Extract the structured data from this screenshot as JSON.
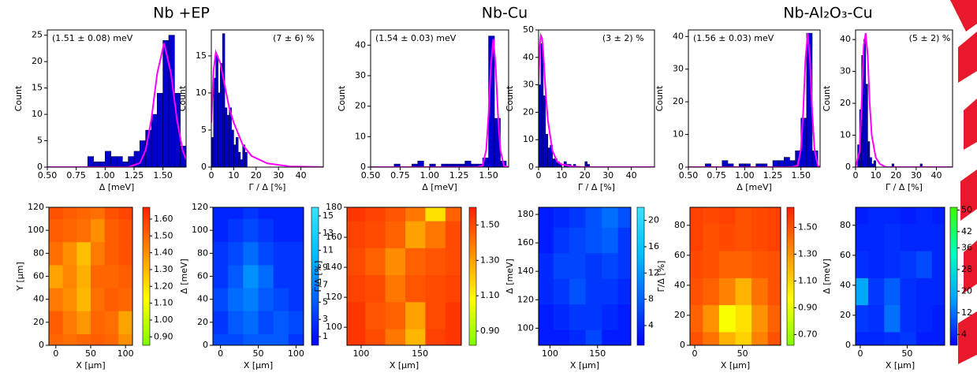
{
  "headings": [
    "Nb +EP",
    "Nb-Cu",
    "Nb-Al₂O₃-Cu"
  ],
  "chart_data": [
    {
      "type": "histogram",
      "annotation": "(1.51 ± 0.08) meV",
      "xlabel": "Δ [meV]",
      "ylabel": "Count",
      "color": "#0000cc",
      "bins": [
        0.85,
        0.9,
        0.95,
        1.0,
        1.05,
        1.1,
        1.15,
        1.2,
        1.25,
        1.3,
        1.35,
        1.4,
        1.45,
        1.5,
        1.55,
        1.6,
        1.65,
        1.7
      ],
      "values": [
        2,
        1,
        1,
        3,
        2,
        2,
        1,
        2,
        3,
        5,
        7,
        10,
        14,
        24,
        25,
        14,
        4
      ],
      "fit": {
        "color": "#ff00ff",
        "x": [
          0.5,
          1.2,
          1.3,
          1.35,
          1.4,
          1.45,
          1.51,
          1.57,
          1.62,
          1.67,
          1.7
        ],
        "y": [
          0,
          0,
          0.75,
          3.2,
          9.1,
          17.7,
          23.5,
          17.7,
          9.1,
          3.2,
          1.4
        ]
      },
      "xlim": [
        0.5,
        1.7
      ],
      "ylim": [
        0,
        26
      ],
      "xticks": [
        {
          "value": 0.5,
          "label": "0.50"
        },
        {
          "value": 0.75,
          "label": "0.75"
        },
        {
          "value": 1.0,
          "label": "1.00"
        },
        {
          "value": 1.25,
          "label": "1.25"
        },
        {
          "value": 1.5,
          "label": "1.50"
        }
      ],
      "yticks": [
        0,
        5,
        10,
        15,
        20,
        25
      ]
    },
    {
      "type": "histogram",
      "annotation": "(7 ± 6) %",
      "xlabel": "Γ / Δ [%]",
      "ylabel": "Count",
      "color": "#0000cc",
      "bins": [
        0,
        1,
        2,
        3,
        4,
        5,
        6,
        7,
        8,
        9,
        10,
        11,
        12,
        13,
        14,
        15,
        16
      ],
      "values": [
        4,
        12,
        15,
        10,
        14,
        18,
        8,
        7,
        8,
        5,
        3,
        4,
        2,
        1,
        3,
        2
      ],
      "fit": {
        "color": "#ff00ff",
        "x": [
          0,
          1,
          2,
          4,
          6,
          8,
          10,
          14,
          18,
          25,
          35,
          50
        ],
        "y": [
          6,
          13,
          15.5,
          14,
          11,
          8,
          6,
          3,
          1.5,
          0.5,
          0.1,
          0
        ]
      },
      "xlim": [
        0,
        50
      ],
      "ylim": [
        0,
        18.5
      ],
      "xticks": [
        0,
        10,
        20,
        30,
        40
      ],
      "yticks": [
        0,
        5,
        10,
        15
      ]
    },
    {
      "type": "histogram",
      "annotation": "(1.54 ± 0.03) meV",
      "xlabel": "Δ [meV]",
      "ylabel": "Count",
      "color": "#0000cc",
      "bins": [
        0.7,
        0.75,
        0.8,
        0.85,
        0.9,
        0.95,
        1.0,
        1.05,
        1.1,
        1.15,
        1.2,
        1.25,
        1.3,
        1.35,
        1.4,
        1.45,
        1.5,
        1.55,
        1.6,
        1.65
      ],
      "values": [
        1,
        0,
        0,
        1,
        2,
        0,
        1,
        0,
        1,
        1,
        1,
        1,
        2,
        1,
        1,
        3,
        43,
        16,
        2
      ],
      "fit": {
        "color": "#ff00ff",
        "x": [
          0.5,
          1.4,
          1.45,
          1.48,
          1.5,
          1.52,
          1.54,
          1.56,
          1.58,
          1.6,
          1.63,
          1.67
        ],
        "y": [
          0,
          0,
          0.47,
          5.7,
          17.3,
          33.6,
          42,
          33.6,
          17.3,
          5.7,
          0.47,
          0
        ]
      },
      "xlim": [
        0.5,
        1.67
      ],
      "ylim": [
        0,
        45
      ],
      "xticks": [
        {
          "value": 0.5,
          "label": "0.50"
        },
        {
          "value": 0.75,
          "label": "0.75"
        },
        {
          "value": 1.0,
          "label": "1.00"
        },
        {
          "value": 1.25,
          "label": "1.25"
        },
        {
          "value": 1.5,
          "label": "1.50"
        }
      ],
      "yticks": [
        0,
        10,
        20,
        30,
        40
      ]
    },
    {
      "type": "histogram",
      "annotation": "(3 ± 2) %",
      "xlabel": "Γ / Δ [%]",
      "ylabel": "Count",
      "color": "#0000cc",
      "bins": [
        0,
        1,
        2,
        3,
        4,
        5,
        6,
        7,
        8,
        9,
        10,
        11,
        12,
        13,
        14,
        15,
        16,
        17,
        18,
        19,
        20,
        21,
        22
      ],
      "values": [
        30,
        45,
        26,
        12,
        7,
        8,
        3,
        3,
        2,
        1,
        0,
        2,
        1,
        1,
        0,
        1,
        0,
        0,
        0,
        0,
        2,
        1
      ],
      "fit": {
        "color": "#ff00ff",
        "x": [
          0,
          0.5,
          1,
          1.5,
          2,
          3,
          4,
          6,
          8,
          10,
          15,
          20,
          30,
          50
        ],
        "y": [
          30,
          44,
          48,
          47,
          42,
          28,
          17,
          6,
          2,
          1,
          0.2,
          0,
          0,
          0
        ]
      },
      "xlim": [
        0,
        50
      ],
      "ylim": [
        0,
        50
      ],
      "xticks": [
        0,
        10,
        20,
        30,
        40
      ],
      "yticks": [
        0,
        10,
        20,
        30,
        40,
        50
      ]
    },
    {
      "type": "histogram",
      "annotation": "(1.56 ± 0.03) meV",
      "xlabel": "Δ [meV]",
      "ylabel": "Count",
      "color": "#0000cc",
      "bins": [
        0.65,
        0.7,
        0.75,
        0.8,
        0.85,
        0.9,
        0.95,
        1.0,
        1.05,
        1.1,
        1.15,
        1.2,
        1.25,
        1.3,
        1.35,
        1.4,
        1.45,
        1.5,
        1.55,
        1.6,
        1.65
      ],
      "values": [
        1,
        0,
        0,
        2,
        1,
        0,
        1,
        1,
        0,
        1,
        1,
        0,
        2,
        2,
        3,
        2,
        5,
        15,
        41,
        5
      ],
      "fit": {
        "color": "#ff00ff",
        "x": [
          0.5,
          1.42,
          1.47,
          1.5,
          1.52,
          1.54,
          1.56,
          1.58,
          1.6,
          1.62,
          1.65,
          1.67
        ],
        "y": [
          0,
          0,
          0.46,
          5.5,
          16.9,
          32.8,
          41,
          32.8,
          16.9,
          5.5,
          0.46,
          0
        ]
      },
      "xlim": [
        0.5,
        1.67
      ],
      "ylim": [
        0,
        42
      ],
      "xticks": [
        {
          "value": 0.5,
          "label": "0.50"
        },
        {
          "value": 0.75,
          "label": "0.75"
        },
        {
          "value": 1.0,
          "label": "1.00"
        },
        {
          "value": 1.25,
          "label": "1.25"
        },
        {
          "value": 1.5,
          "label": "1.50"
        }
      ],
      "yticks": [
        0,
        10,
        20,
        30,
        40
      ]
    },
    {
      "type": "histogram",
      "annotation": "(5 ± 2) %",
      "xlabel": "Γ / Δ [%]",
      "ylabel": "Count",
      "color": "#0000cc",
      "bins": [
        1,
        2,
        3,
        4,
        5,
        6,
        7,
        8,
        9,
        10,
        11,
        12,
        13,
        14,
        15,
        16,
        17,
        18,
        19,
        20,
        21,
        22,
        23,
        24,
        25,
        26,
        27,
        28,
        29,
        30,
        31,
        32,
        33,
        34
      ],
      "values": [
        7,
        18,
        35,
        40,
        26,
        8,
        3,
        1,
        2,
        0,
        0,
        0,
        0,
        0,
        0,
        0,
        0,
        1,
        0,
        0,
        0,
        0,
        0,
        0,
        0,
        0,
        0,
        0,
        0,
        0,
        0,
        1,
        0
      ],
      "fit": {
        "color": "#ff00ff",
        "x": [
          0,
          2,
          3,
          4,
          5,
          6,
          7,
          8,
          10,
          12,
          15,
          48
        ],
        "y": [
          0,
          5,
          20,
          38,
          42,
          35,
          20,
          10,
          3,
          1,
          0,
          0
        ]
      },
      "xlim": [
        0,
        48
      ],
      "ylim": [
        0,
        43
      ],
      "xticks": [
        0,
        10,
        20,
        30,
        40
      ],
      "yticks": [
        0,
        10,
        20,
        30,
        40
      ]
    },
    {
      "type": "heatmap",
      "xlabel": "X [μm]",
      "ylabel": "Y [μm]",
      "x": [
        0,
        20,
        40,
        60,
        80,
        100
      ],
      "y": [
        0,
        20,
        40,
        60,
        80,
        100,
        120
      ],
      "z": [
        [
          1.5,
          1.48,
          1.5,
          1.52,
          1.5,
          1.4
        ],
        [
          1.52,
          1.45,
          1.38,
          1.5,
          1.48,
          1.35
        ],
        [
          1.45,
          1.4,
          1.3,
          1.48,
          1.52,
          1.5
        ],
        [
          1.35,
          1.42,
          1.32,
          1.5,
          1.5,
          1.52
        ],
        [
          1.48,
          1.4,
          1.28,
          1.45,
          1.52,
          1.55
        ],
        [
          1.52,
          1.5,
          1.48,
          1.4,
          1.52,
          1.55
        ],
        [
          1.55,
          1.52,
          1.5,
          1.48,
          1.55,
          1.58
        ]
      ],
      "xlim": [
        -10,
        110
      ],
      "ylim": [
        0,
        120
      ],
      "xticks": [
        0,
        50,
        100
      ],
      "yticks": [
        0,
        20,
        40,
        60,
        80,
        100,
        120
      ],
      "colormap": [
        "#80ff00",
        "#ffff00",
        "#ff9000",
        "#ff2000"
      ],
      "clim": [
        0.85,
        1.67
      ],
      "cticks": [
        {
          "value": 0.9,
          "label": "0.90"
        },
        {
          "value": 1.0,
          "label": "1.00"
        },
        {
          "value": 1.1,
          "label": "1.10"
        },
        {
          "value": 1.2,
          "label": "1.20"
        },
        {
          "value": 1.3,
          "label": "1.30"
        },
        {
          "value": 1.4,
          "label": "1.40"
        },
        {
          "value": 1.5,
          "label": "1.50"
        },
        {
          "value": 1.6,
          "label": "1.60"
        }
      ]
    },
    {
      "type": "heatmap",
      "xlabel": "X [μm]",
      "ylabel": "Δ [meV]",
      "x": [
        0,
        20,
        40,
        60,
        80,
        100
      ],
      "y": [
        0,
        20,
        40,
        60,
        80,
        100,
        120
      ],
      "z": [
        [
          4,
          4,
          5,
          5,
          5,
          3
        ],
        [
          3,
          5,
          6,
          4,
          5,
          4
        ],
        [
          4,
          6,
          7,
          5,
          4,
          3
        ],
        [
          3,
          5,
          8,
          6,
          3,
          3
        ],
        [
          3,
          4,
          6,
          4,
          3,
          3
        ],
        [
          2,
          3,
          4,
          3,
          2,
          2
        ],
        [
          2,
          2,
          3,
          2,
          2,
          2
        ]
      ],
      "xlim": [
        -10,
        110
      ],
      "ylim": [
        0,
        120
      ],
      "xticks": [
        0,
        50,
        100
      ],
      "yticks": [
        0,
        20,
        40,
        60,
        80,
        100,
        120
      ],
      "colormap": [
        "#0000ff",
        "#0060ff",
        "#00c0ff",
        "#40e0ff"
      ],
      "clim": [
        0,
        16
      ],
      "cticks": [
        1,
        3,
        5,
        7,
        9,
        11,
        13,
        15
      ]
    },
    {
      "type": "heatmap",
      "xlabel": "X [μm]",
      "ylabel": "Γ/Δ [%]",
      "x": [
        95,
        112,
        129,
        146,
        163,
        180
      ],
      "y": [
        90,
        108,
        126,
        144,
        162,
        180
      ],
      "z": [
        [
          1.55,
          1.5,
          1.4,
          1.25,
          1.52,
          1.55
        ],
        [
          1.55,
          1.48,
          1.45,
          1.3,
          1.5,
          1.55
        ],
        [
          1.52,
          1.5,
          1.4,
          1.48,
          1.5,
          1.52
        ],
        [
          1.5,
          1.45,
          1.35,
          1.45,
          1.48,
          1.5
        ],
        [
          1.52,
          1.5,
          1.45,
          1.3,
          1.4,
          1.5
        ],
        [
          1.55,
          1.52,
          1.48,
          1.4,
          1.15,
          1.45
        ]
      ],
      "xlim": [
        88,
        185
      ],
      "ylim": [
        88,
        180
      ],
      "xticks": [
        100,
        150
      ],
      "yticks": [
        100,
        120,
        140,
        160,
        180
      ],
      "colormap": [
        "#80ff00",
        "#ffff00",
        "#ff9000",
        "#ff2000"
      ],
      "clim": [
        0.82,
        1.6
      ],
      "cticks": [
        {
          "value": 0.9,
          "label": "0.90"
        },
        {
          "value": 1.1,
          "label": "1.10"
        },
        {
          "value": 1.3,
          "label": "1.30"
        },
        {
          "value": 1.5,
          "label": "1.50"
        }
      ]
    },
    {
      "type": "heatmap",
      "xlabel": "X [μm]",
      "ylabel": "Δ [meV]",
      "x": [
        95,
        112,
        129,
        146,
        163,
        180
      ],
      "y": [
        90,
        108,
        126,
        144,
        162,
        180
      ],
      "z": [
        [
          3,
          3,
          4,
          6,
          3,
          3
        ],
        [
          3,
          4,
          5,
          5,
          4,
          3
        ],
        [
          4,
          5,
          7,
          5,
          5,
          4
        ],
        [
          4,
          6,
          6,
          5,
          6,
          5
        ],
        [
          3,
          5,
          6,
          7,
          8,
          5
        ],
        [
          3,
          4,
          5,
          7,
          9,
          7
        ]
      ],
      "xlim": [
        88,
        185
      ],
      "ylim": [
        88,
        185
      ],
      "xticks": [
        100,
        150
      ],
      "yticks": [
        100,
        120,
        140,
        160,
        180
      ],
      "colormap": [
        "#0000ff",
        "#0060ff",
        "#00c0ff",
        "#40e0ff"
      ],
      "clim": [
        1,
        22
      ],
      "cticks": [
        4,
        8,
        12,
        16,
        20
      ]
    },
    {
      "type": "heatmap",
      "xlabel": "X [μm]",
      "ylabel": "Γ/Δ [%]",
      "x": [
        0,
        17,
        34,
        51,
        68,
        85
      ],
      "y": [
        0,
        18,
        36,
        54,
        72,
        90
      ],
      "z": [
        [
          1.5,
          1.4,
          1.2,
          1.1,
          1.35,
          1.5
        ],
        [
          1.45,
          1.3,
          0.95,
          1.05,
          1.3,
          1.45
        ],
        [
          1.5,
          1.45,
          1.35,
          1.2,
          1.4,
          1.5
        ],
        [
          1.52,
          1.5,
          1.45,
          1.45,
          1.48,
          1.5
        ],
        [
          1.55,
          1.5,
          1.52,
          1.5,
          1.52,
          1.55
        ],
        [
          1.55,
          1.52,
          1.55,
          1.5,
          1.52,
          1.55
        ]
      ],
      "xlim": [
        -5,
        90
      ],
      "ylim": [
        0,
        92
      ],
      "xticks": [
        0,
        50
      ],
      "yticks": [
        0,
        20,
        40,
        60,
        80
      ],
      "colormap": [
        "#80ff00",
        "#ffff00",
        "#ff9000",
        "#ff2000"
      ],
      "clim": [
        0.62,
        1.65
      ],
      "cticks": [
        {
          "value": 0.7,
          "label": "0.70"
        },
        {
          "value": 0.9,
          "label": "0.90"
        },
        {
          "value": 1.1,
          "label": "1.10"
        },
        {
          "value": 1.3,
          "label": "1.30"
        },
        {
          "value": 1.5,
          "label": "1.50"
        }
      ]
    },
    {
      "type": "heatmap",
      "xlabel": "X [μm]",
      "ylabel": "Δ [meV]",
      "x": [
        0,
        17,
        34,
        51,
        68,
        85
      ],
      "y": [
        0,
        18,
        36,
        54,
        72,
        90
      ],
      "z": [
        [
          4,
          4,
          5,
          6,
          3,
          3
        ],
        [
          6,
          5,
          12,
          5,
          4,
          3
        ],
        [
          18,
          6,
          10,
          5,
          4,
          4
        ],
        [
          5,
          4,
          5,
          6,
          8,
          4
        ],
        [
          4,
          4,
          5,
          4,
          4,
          4
        ],
        [
          3,
          4,
          4,
          3,
          4,
          3
        ]
      ],
      "xlim": [
        -5,
        90
      ],
      "ylim": [
        0,
        92
      ],
      "xticks": [
        0,
        50
      ],
      "yticks": [
        0,
        20,
        40,
        60,
        80
      ],
      "colormap": [
        "#0000ff",
        "#00a0ff",
        "#00ffc0",
        "#40ff00"
      ],
      "clim": [
        0,
        51
      ],
      "cticks": [
        4,
        12,
        20,
        28,
        36,
        42,
        50
      ]
    }
  ]
}
